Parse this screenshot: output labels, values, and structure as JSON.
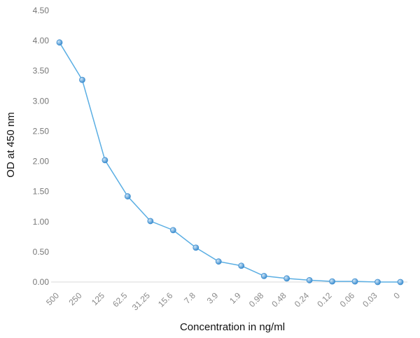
{
  "chart_data": {
    "type": "line",
    "title": "",
    "xlabel": "Concentration in ng/ml",
    "ylabel": "OD  at 450 nm",
    "ylim": [
      0,
      4.5
    ],
    "y_ticks": [
      "0.00",
      "0.50",
      "1.00",
      "1.50",
      "2.00",
      "2.50",
      "3.00",
      "3.50",
      "4.00",
      "4.50"
    ],
    "y_tick_values": [
      0,
      0.5,
      1.0,
      1.5,
      2.0,
      2.5,
      3.0,
      3.5,
      4.0,
      4.5
    ],
    "categories": [
      "500",
      "250",
      "125",
      "62.5",
      "31.25",
      "15.6",
      "7.8",
      "3.9",
      "1.9",
      "0.98",
      "0.48",
      "0.24",
      "0.12",
      "0.06",
      "0.03",
      "0"
    ],
    "series": [
      {
        "name": "OD at 450 nm",
        "values": [
          3.97,
          3.35,
          2.02,
          1.42,
          1.01,
          0.86,
          0.57,
          0.34,
          0.27,
          0.1,
          0.06,
          0.03,
          0.01,
          0.01,
          0.0,
          0.0
        ]
      }
    ],
    "grid": false,
    "colors": {
      "line": "#5aaee3",
      "marker": "#3f8fd0",
      "marker_highlight": "#cfe6f8",
      "axis": "#d9d9d9"
    }
  }
}
